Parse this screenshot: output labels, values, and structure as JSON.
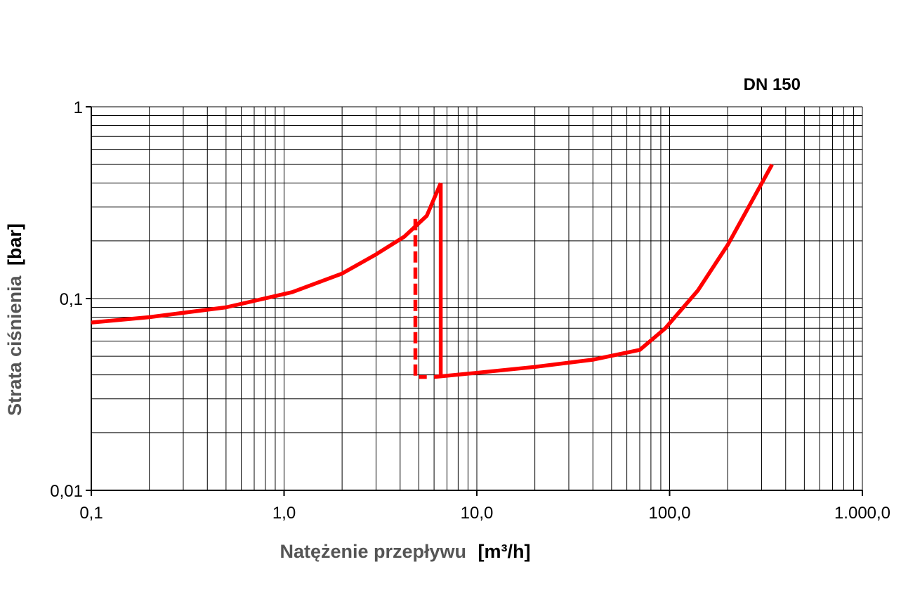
{
  "chart_data": {
    "type": "line",
    "title": "DN 150",
    "xlabel": "Natężenie przepływu",
    "xunit": "[m³/h]",
    "ylabel": "Strata ciśnienia",
    "yunit": "[bar]",
    "xscale": "log",
    "yscale": "log",
    "xlim": [
      0.1,
      1000
    ],
    "ylim": [
      0.01,
      1
    ],
    "grid": true,
    "xticks": [
      {
        "value": 0.1,
        "label": "0,1"
      },
      {
        "value": 1,
        "label": "1,0"
      },
      {
        "value": 10,
        "label": "10,0"
      },
      {
        "value": 100,
        "label": "100,0"
      },
      {
        "value": 1000,
        "label": "1.000,0"
      }
    ],
    "yticks": [
      {
        "value": 1,
        "label": "1"
      },
      {
        "value": 0.1,
        "label": "0,1"
      },
      {
        "value": 0.01,
        "label": "0,01"
      }
    ],
    "series": [
      {
        "style": "solid",
        "color": "#ff0000",
        "points": [
          [
            0.1,
            0.075
          ],
          [
            0.2,
            0.08
          ],
          [
            0.5,
            0.09
          ],
          [
            1.1,
            0.108
          ],
          [
            2.0,
            0.135
          ],
          [
            3.0,
            0.17
          ],
          [
            4.2,
            0.21
          ],
          [
            5.5,
            0.27
          ],
          [
            6.5,
            0.4
          ]
        ]
      },
      {
        "style": "solid",
        "color": "#ff0000",
        "points": [
          [
            6.5,
            0.4
          ],
          [
            6.5,
            0.04
          ]
        ]
      },
      {
        "style": "solid",
        "color": "#ff0000",
        "points": [
          [
            6.0,
            0.039
          ],
          [
            10.0,
            0.041
          ],
          [
            20.0,
            0.044
          ],
          [
            40.0,
            0.048
          ],
          [
            70.0,
            0.054
          ],
          [
            95.0,
            0.07
          ],
          [
            140.0,
            0.11
          ],
          [
            200.0,
            0.19
          ],
          [
            340.0,
            0.5
          ]
        ]
      },
      {
        "style": "dashed",
        "color": "#ff0000",
        "points": [
          [
            4.8,
            0.26
          ],
          [
            4.8,
            0.039
          ],
          [
            5.5,
            0.039
          ]
        ]
      }
    ]
  }
}
